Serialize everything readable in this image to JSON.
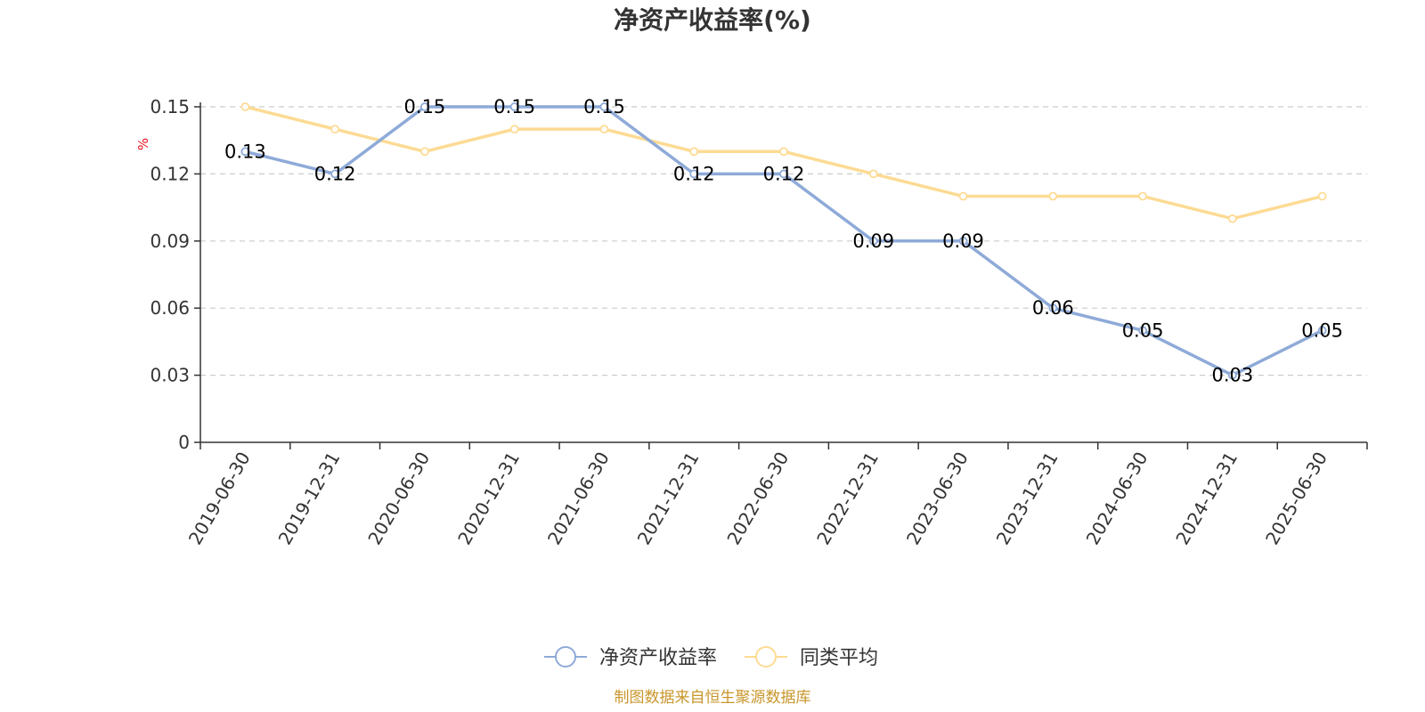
{
  "chart_data": {
    "type": "line",
    "title": "净资产收益率(%)",
    "ylabel": "%",
    "xlabel": "",
    "ylim": [
      0,
      0.15
    ],
    "yticks": [
      "0",
      "0.03",
      "0.06",
      "0.09",
      "0.12",
      "0.15"
    ],
    "categories": [
      "2019-06-30",
      "2019-12-31",
      "2020-06-30",
      "2020-12-31",
      "2021-06-30",
      "2021-12-31",
      "2022-06-30",
      "2022-12-31",
      "2023-06-30",
      "2023-12-31",
      "2024-06-30",
      "2024-12-31",
      "2025-06-30"
    ],
    "series": [
      {
        "name": "净资产收益率",
        "color": "#8eaad8",
        "values": [
          0.13,
          0.12,
          0.15,
          0.15,
          0.15,
          0.12,
          0.12,
          0.09,
          0.09,
          0.06,
          0.05,
          0.03,
          0.05
        ],
        "labels_shown": true
      },
      {
        "name": "同类平均",
        "color": "#fddb94",
        "values": [
          0.15,
          0.14,
          0.13,
          0.14,
          0.14,
          0.13,
          0.13,
          0.12,
          0.11,
          0.11,
          0.11,
          0.1,
          0.11
        ],
        "labels_shown": false
      }
    ],
    "grid": true,
    "legend_position": "bottom"
  },
  "source_note": "制图数据来自恒生聚源数据库"
}
